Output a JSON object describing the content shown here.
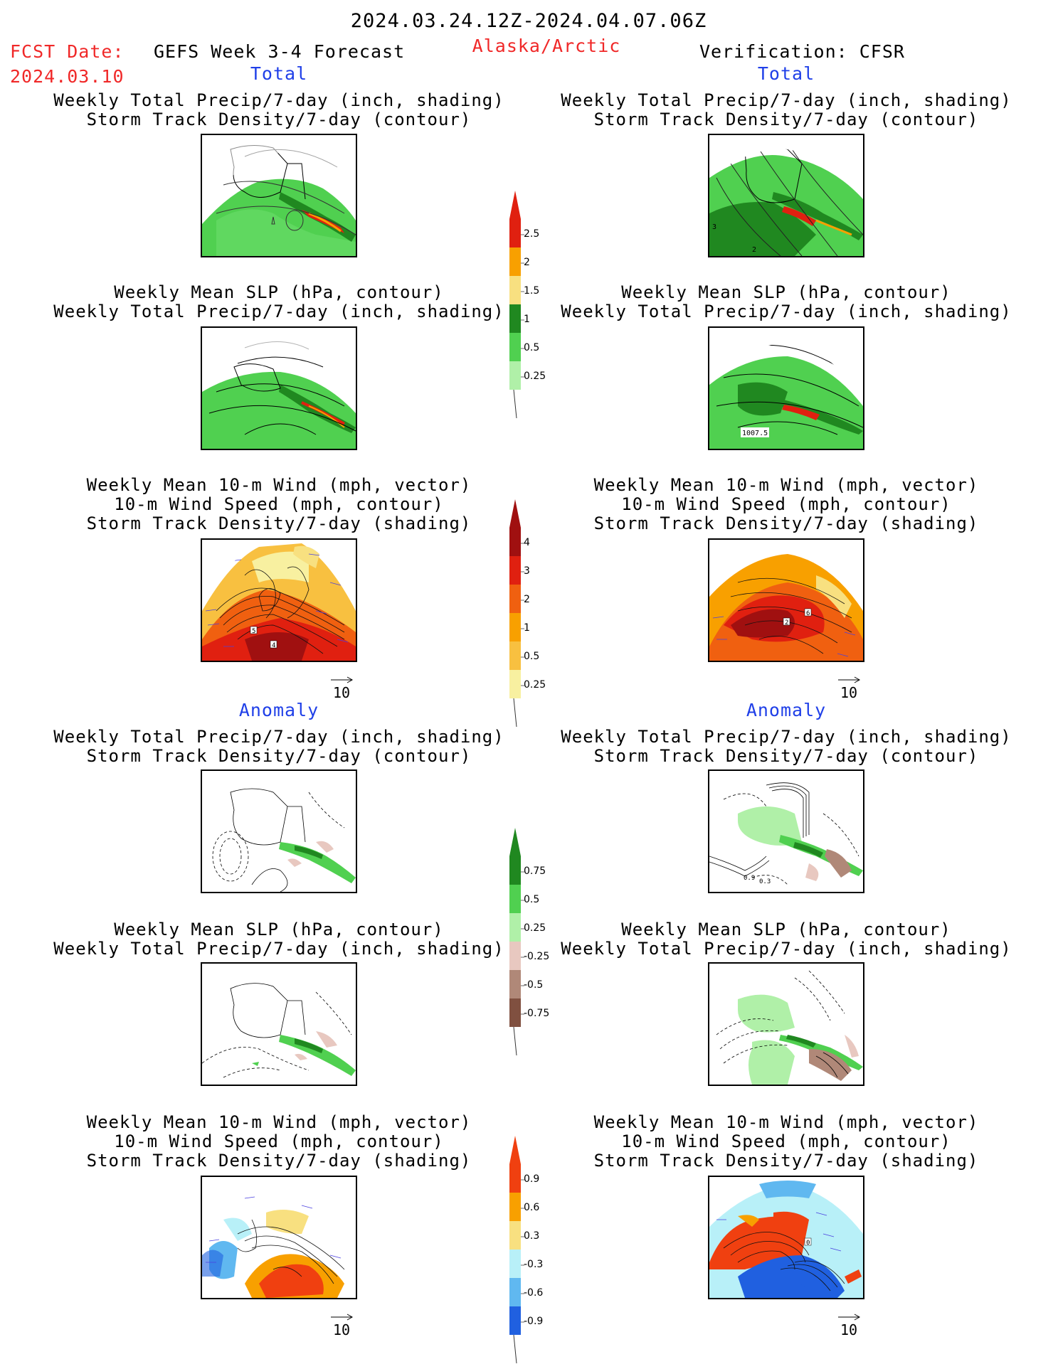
{
  "header": {
    "valid_range": "2024.03.24.12Z-2024.04.07.06Z",
    "fcst_label": "FCST Date:",
    "fcst_date": "2024.03.10",
    "model_title": "GEFS Week 3-4 Forecast",
    "region": "Alaska/Arctic",
    "verification": "Verification: CFSR"
  },
  "sections": {
    "total_left": "Total",
    "total_right": "Total",
    "anomaly_left": "Anomaly",
    "anomaly_right": "Anomaly"
  },
  "panel_titles": {
    "precip_track": [
      "Weekly Total Precip/7-day (inch, shading)",
      "Storm Track Density/7-day (contour)"
    ],
    "slp_precip": [
      "Weekly Mean SLP (hPa, contour)",
      "Weekly Total Precip/7-day (inch, shading)"
    ],
    "wind": [
      "Weekly Mean 10-m Wind (mph, vector)",
      "10-m Wind Speed (mph, contour)",
      "Storm Track Density/7-day (shading)"
    ]
  },
  "reference_vector": "10",
  "contour_labels": {
    "r1_right_a": "3",
    "r1_right_b": "2",
    "r2_right": "1007.5",
    "r3_left_a": "5",
    "r3_left_b": "4",
    "r3_right_a": "2",
    "r3_right_b": "6",
    "r4_right_a": "0.9",
    "r4_right_b": "0.3",
    "r6_right": "0"
  },
  "chart_data": [
    {
      "type": "heatmap",
      "name": "precip_total_colorbar",
      "levels": [
        "2.5",
        "2",
        "1.5",
        "1",
        "0.5",
        "0.25"
      ],
      "colors": [
        "#e02010",
        "#f8a000",
        "#f8e080",
        "#208820",
        "#50d050",
        "#b0f0a8"
      ]
    },
    {
      "type": "heatmap",
      "name": "track_total_colorbar",
      "levels": [
        "4",
        "3",
        "2",
        "1",
        "0.5",
        "0.25"
      ],
      "colors": [
        "#a01010",
        "#e02010",
        "#f06010",
        "#f8a000",
        "#f8c040",
        "#f8f0a0"
      ]
    },
    {
      "type": "heatmap",
      "name": "precip_anom_colorbar",
      "levels": [
        "0.75",
        "0.5",
        "0.25",
        "-0.25",
        "-0.5",
        "-0.75"
      ],
      "colors": [
        "#208820",
        "#50d050",
        "#b0f0a8",
        "#e8c8c0",
        "#b08878",
        "#805040"
      ]
    },
    {
      "type": "heatmap",
      "name": "track_anom_colorbar",
      "levels": [
        "0.9",
        "0.6",
        "0.3",
        "-0.3",
        "-0.6",
        "-0.9"
      ],
      "colors": [
        "#f04010",
        "#f8a000",
        "#f8e080",
        "#b8f0f8",
        "#60b8f0",
        "#2060e0"
      ]
    }
  ]
}
